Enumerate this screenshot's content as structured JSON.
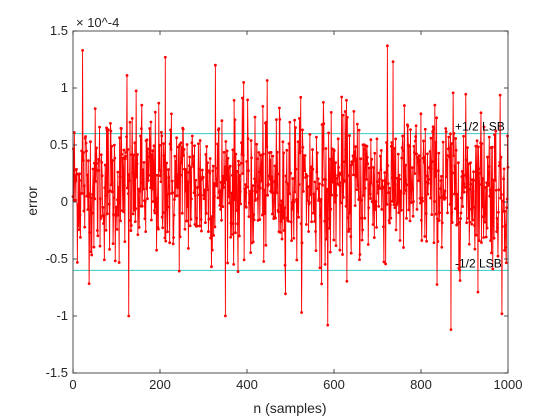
{
  "chart_data": {
    "type": "line",
    "xlabel": "n (samples)",
    "ylabel": "error",
    "xlim": [
      0,
      1000
    ],
    "ylim": [
      -1.5,
      1.5
    ],
    "y_exponent_label": "× 10^-4",
    "y_scale": 0.0001,
    "x_ticks": [
      0,
      200,
      400,
      600,
      800,
      1000
    ],
    "x_tick_labels": [
      "0",
      "200",
      "400",
      "600",
      "800",
      "1000"
    ],
    "y_ticks": [
      -1.5,
      -1,
      -0.5,
      0,
      0.5,
      1,
      1.5
    ],
    "y_tick_labels": [
      "-1.5",
      "-1",
      "-0.5",
      "0",
      "0.5",
      "1",
      "1.5"
    ],
    "grid": false,
    "series": [
      {
        "color": "#ff0000",
        "marker": "dot",
        "n_points": 1000,
        "approx_mean": 0.15,
        "approx_range": [
          -1.12,
          1.37
        ],
        "peaks": [
          {
            "x": 22,
            "y": 1.33
          },
          {
            "x": 124,
            "y": 1.11
          },
          {
            "x": 212,
            "y": 1.27
          },
          {
            "x": 128,
            "y": -1.0
          },
          {
            "x": 327,
            "y": 1.2
          },
          {
            "x": 585,
            "y": -1.08
          },
          {
            "x": 722,
            "y": 1.37
          },
          {
            "x": 868,
            "y": -1.12
          },
          {
            "x": 985,
            "y": -0.98
          }
        ]
      }
    ],
    "reference_lines": [
      {
        "y": 0.6,
        "color": "#33cccc",
        "label": "+1/2 LSB"
      },
      {
        "y": -0.6,
        "color": "#33cccc",
        "label": "-1/2 LSB"
      }
    ]
  }
}
